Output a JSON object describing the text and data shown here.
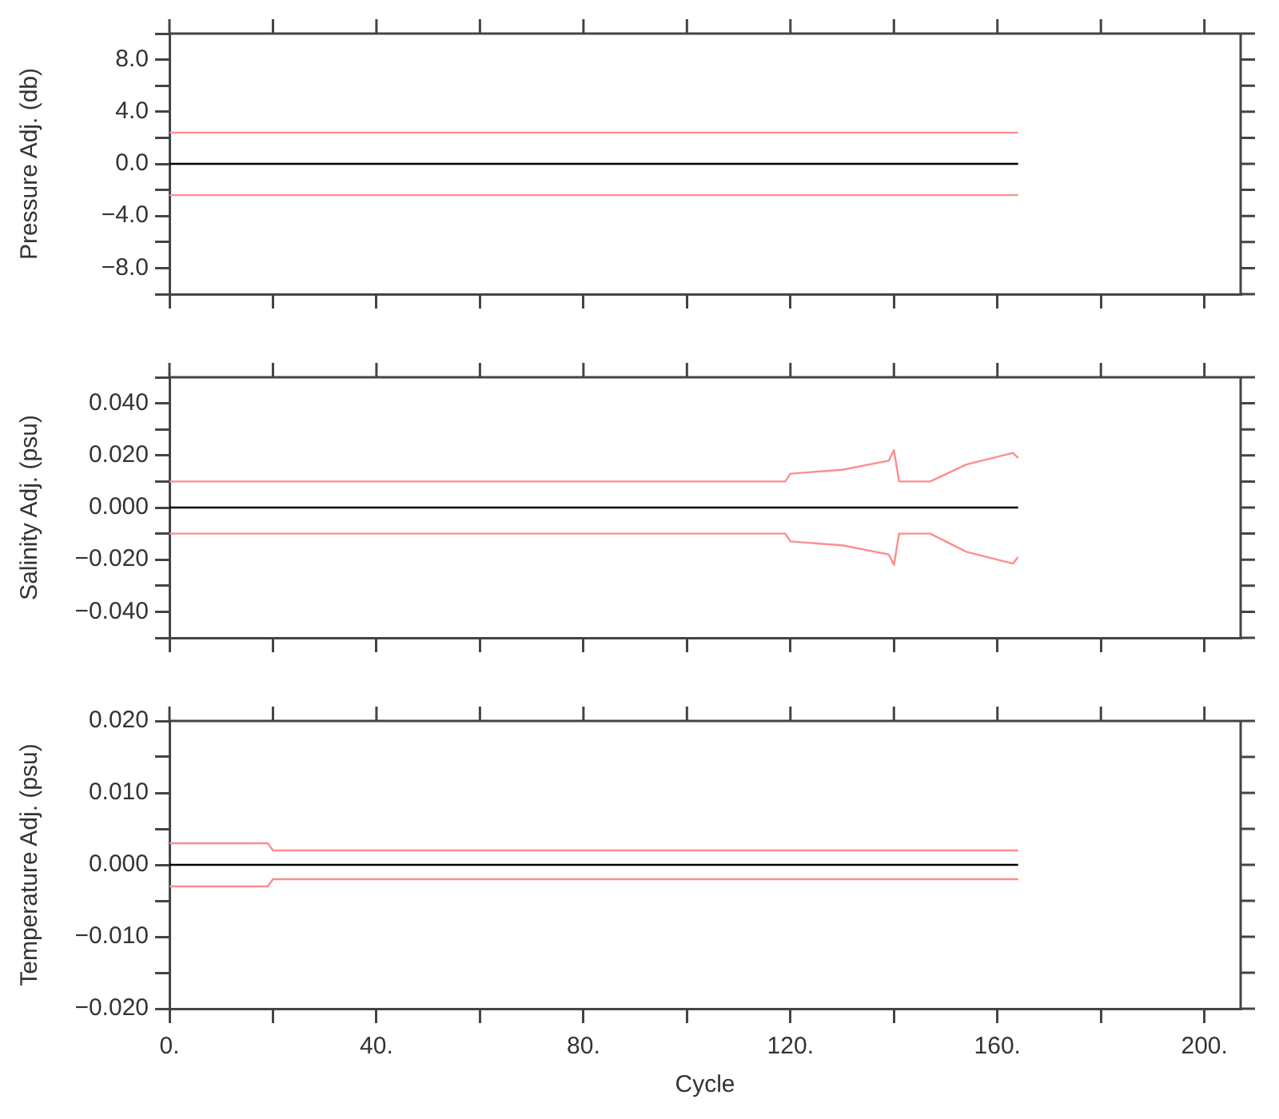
{
  "chart_data": [
    {
      "type": "line",
      "ylabel": "Pressure Adj. (db)",
      "xlim": [
        0,
        207
      ],
      "xticks": [
        {
          "value": 0,
          "label": null
        },
        {
          "value": 20,
          "label": null
        },
        {
          "value": 40,
          "label": null
        },
        {
          "value": 60,
          "label": null
        },
        {
          "value": 80,
          "label": null
        },
        {
          "value": 100,
          "label": null
        },
        {
          "value": 120,
          "label": null
        },
        {
          "value": 140,
          "label": null
        },
        {
          "value": 160,
          "label": null
        },
        {
          "value": 180,
          "label": null
        },
        {
          "value": 200,
          "label": null
        }
      ],
      "ylim": [
        -10,
        10
      ],
      "yticks": [
        {
          "value": -10,
          "label": null
        },
        {
          "value": -8,
          "label": "−8.0"
        },
        {
          "value": -6,
          "label": null
        },
        {
          "value": -4,
          "label": "−4.0"
        },
        {
          "value": -2,
          "label": null
        },
        {
          "value": 0,
          "label": "0.0"
        },
        {
          "value": 2,
          "label": null
        },
        {
          "value": 4,
          "label": "4.0"
        },
        {
          "value": 6,
          "label": null
        },
        {
          "value": 8,
          "label": "8.0"
        },
        {
          "value": 10,
          "label": null
        }
      ],
      "tick_labels": "y",
      "grid": false,
      "legend": false,
      "series": [
        {
          "color": "#ff8c8c",
          "x": [
            0,
            164
          ],
          "values": [
            2.4,
            2.4
          ]
        },
        {
          "color": "#000000",
          "x": [
            0,
            164
          ],
          "values": [
            0,
            0
          ]
        },
        {
          "color": "#ff8c8c",
          "x": [
            0,
            164
          ],
          "values": [
            -2.4,
            -2.4
          ]
        }
      ]
    },
    {
      "type": "line",
      "ylabel": "Salinity Adj. (psu)",
      "xlim": [
        0,
        207
      ],
      "xticks": [
        {
          "value": 0,
          "label": null
        },
        {
          "value": 20,
          "label": null
        },
        {
          "value": 40,
          "label": null
        },
        {
          "value": 60,
          "label": null
        },
        {
          "value": 80,
          "label": null
        },
        {
          "value": 100,
          "label": null
        },
        {
          "value": 120,
          "label": null
        },
        {
          "value": 140,
          "label": null
        },
        {
          "value": 160,
          "label": null
        },
        {
          "value": 180,
          "label": null
        },
        {
          "value": 200,
          "label": null
        }
      ],
      "ylim": [
        -0.05,
        0.05
      ],
      "yticks": [
        {
          "value": -0.05,
          "label": null
        },
        {
          "value": -0.04,
          "label": "−0.040"
        },
        {
          "value": -0.03,
          "label": null
        },
        {
          "value": -0.02,
          "label": "−0.020"
        },
        {
          "value": -0.01,
          "label": null
        },
        {
          "value": 0,
          "label": "0.000"
        },
        {
          "value": 0.01,
          "label": null
        },
        {
          "value": 0.02,
          "label": "0.020"
        },
        {
          "value": 0.03,
          "label": null
        },
        {
          "value": 0.04,
          "label": "0.040"
        },
        {
          "value": 0.05,
          "label": null
        }
      ],
      "tick_labels": "y",
      "grid": false,
      "legend": false,
      "series": [
        {
          "color": "#ff8c8c",
          "x": [
            0,
            119,
            120,
            130,
            139,
            140,
            141,
            147,
            154,
            163,
            164
          ],
          "values": [
            0.01,
            0.01,
            0.013,
            0.0145,
            0.018,
            0.022,
            0.01,
            0.01,
            0.0165,
            0.021,
            0.019
          ]
        },
        {
          "color": "#000000",
          "x": [
            0,
            164
          ],
          "values": [
            0,
            0
          ]
        },
        {
          "color": "#ff8c8c",
          "x": [
            0,
            119,
            120,
            130,
            139,
            140,
            141,
            147,
            154,
            163,
            164
          ],
          "values": [
            -0.01,
            -0.01,
            -0.013,
            -0.0145,
            -0.018,
            -0.022,
            -0.01,
            -0.01,
            -0.017,
            -0.0215,
            -0.019
          ]
        }
      ]
    },
    {
      "type": "line",
      "xlabel": "Cycle",
      "ylabel": "Temperature Adj. (psu)",
      "xlim": [
        0,
        207
      ],
      "xticks": [
        {
          "value": 0,
          "label": "0."
        },
        {
          "value": 20,
          "label": null
        },
        {
          "value": 40,
          "label": "40."
        },
        {
          "value": 60,
          "label": null
        },
        {
          "value": 80,
          "label": "80."
        },
        {
          "value": 100,
          "label": null
        },
        {
          "value": 120,
          "label": "120."
        },
        {
          "value": 140,
          "label": null
        },
        {
          "value": 160,
          "label": "160."
        },
        {
          "value": 180,
          "label": null
        },
        {
          "value": 200,
          "label": "200."
        }
      ],
      "ylim": [
        -0.02,
        0.02
      ],
      "yticks": [
        {
          "value": -0.02,
          "label": "−0.020"
        },
        {
          "value": -0.015,
          "label": null
        },
        {
          "value": -0.01,
          "label": "−0.010"
        },
        {
          "value": -0.005,
          "label": null
        },
        {
          "value": 0,
          "label": "0.000"
        },
        {
          "value": 0.005,
          "label": null
        },
        {
          "value": 0.01,
          "label": "0.010"
        },
        {
          "value": 0.015,
          "label": null
        },
        {
          "value": 0.02,
          "label": "0.020"
        }
      ],
      "grid": false,
      "legend": false,
      "series": [
        {
          "color": "#ff8c8c",
          "x": [
            0,
            19,
            20,
            164
          ],
          "values": [
            0.003,
            0.003,
            0.002,
            0.002
          ]
        },
        {
          "color": "#000000",
          "x": [
            0,
            164
          ],
          "values": [
            0,
            0
          ]
        },
        {
          "color": "#ff8c8c",
          "x": [
            0,
            19,
            20,
            164
          ],
          "values": [
            -0.003,
            -0.003,
            -0.002,
            -0.002
          ]
        }
      ]
    }
  ]
}
